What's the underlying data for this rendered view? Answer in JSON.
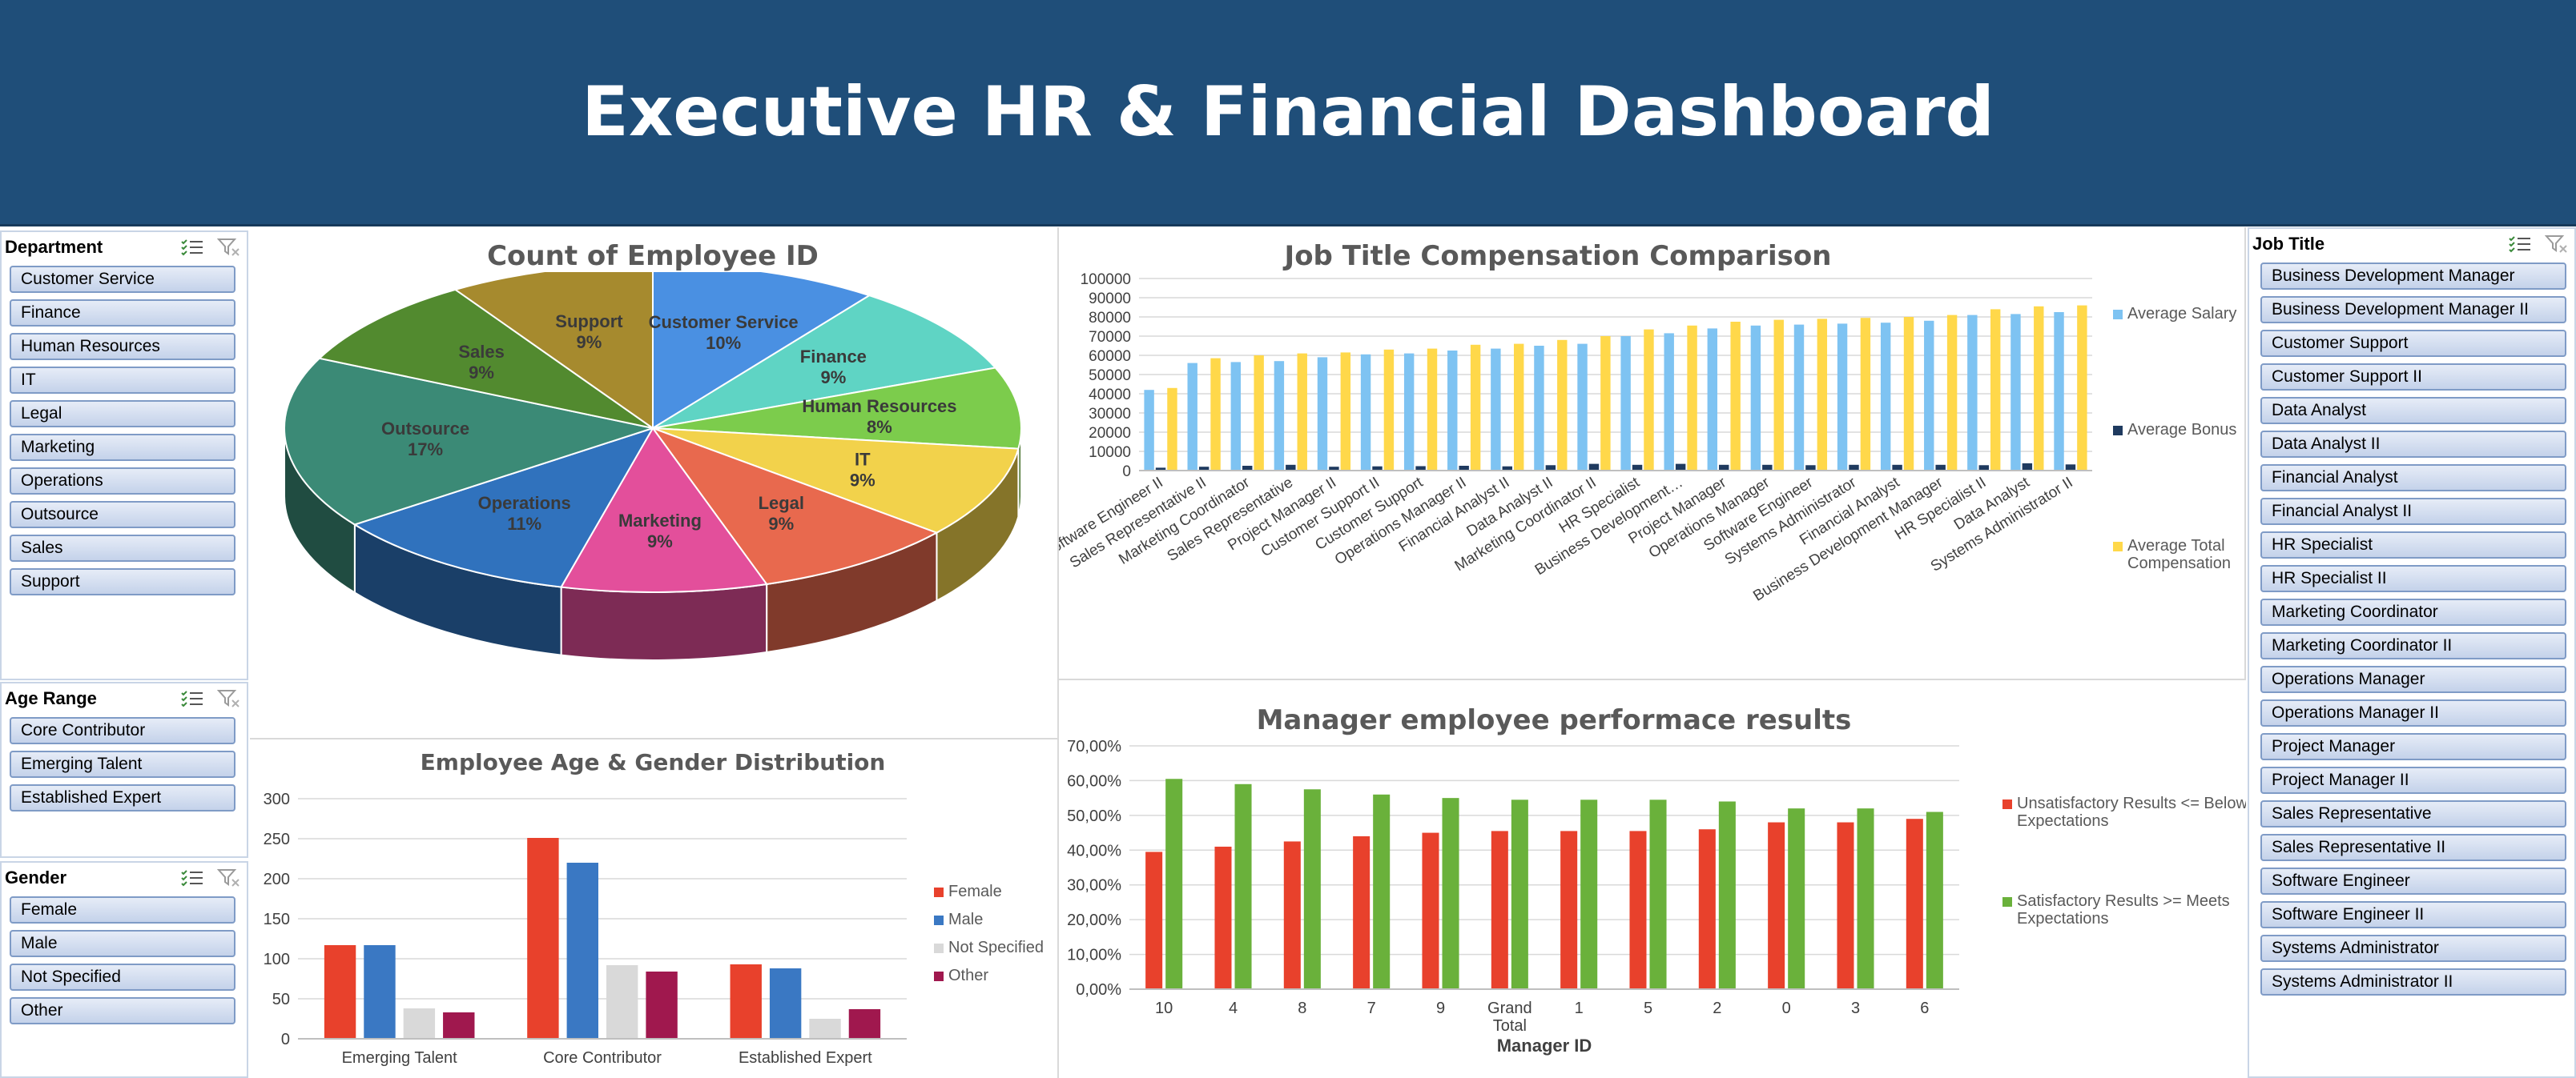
{
  "dashboard": {
    "title": "Executive HR & Financial Dashboard"
  },
  "slicers": {
    "department": {
      "title": "Department",
      "items": [
        "Customer Service",
        "Finance",
        "Human Resources",
        "IT",
        "Legal",
        "Marketing",
        "Operations",
        "Outsource",
        "Sales",
        "Support"
      ]
    },
    "age_range": {
      "title": "Age Range",
      "items": [
        "Core Contributor",
        "Emerging Talent",
        "Established Expert"
      ]
    },
    "gender": {
      "title": "Gender",
      "items": [
        "Female",
        "Male",
        "Not Specified",
        "Other"
      ]
    },
    "job_title": {
      "title": "Job Title",
      "items": [
        "Business Development Manager",
        "Business Development Manager II",
        "Customer Support",
        "Customer Support II",
        "Data Analyst",
        "Data Analyst II",
        "Financial Analyst",
        "Financial Analyst II",
        "HR Specialist",
        "HR Specialist II",
        "Marketing Coordinator",
        "Marketing Coordinator II",
        "Operations Manager",
        "Operations Manager II",
        "Project Manager",
        "Project Manager II",
        "Sales Representative",
        "Sales Representative II",
        "Software Engineer",
        "Software Engineer II",
        "Systems Administrator",
        "Systems Administrator II"
      ]
    }
  },
  "icons": {
    "multi_select": "multi-select-icon",
    "clear_filter": "clear-filter-icon"
  },
  "chart_data": [
    {
      "id": "pie",
      "type": "pie",
      "title": "Count of Employee ID",
      "slices": [
        {
          "name": "Customer Service",
          "pct_label": "10%",
          "value": 10,
          "color": "#4a90e2"
        },
        {
          "name": "Finance",
          "pct_label": "9%",
          "value": 9,
          "color": "#5fd4c4"
        },
        {
          "name": "Human Resources",
          "pct_label": "8%",
          "value": 8,
          "color": "#7ccc4c"
        },
        {
          "name": "IT",
          "pct_label": "9%",
          "value": 9,
          "color": "#f2d24b"
        },
        {
          "name": "Legal",
          "pct_label": "9%",
          "value": 9,
          "color": "#e8694e"
        },
        {
          "name": "Marketing",
          "pct_label": "9%",
          "value": 9,
          "color": "#e34f9b"
        },
        {
          "name": "Operations",
          "pct_label": "11%",
          "value": 11,
          "color": "#3072bd"
        },
        {
          "name": "Outsource",
          "pct_label": "17%",
          "value": 17,
          "color": "#3b8a76"
        },
        {
          "name": "Sales",
          "pct_label": "9%",
          "value": 9,
          "color": "#528a2f"
        },
        {
          "name": "Support",
          "pct_label": "9%",
          "value": 9,
          "color": "#a68a2e"
        }
      ]
    },
    {
      "id": "comp",
      "type": "bar",
      "title": "Job Title Compensation Comparison",
      "categories": [
        "Software Engineer II",
        "Sales Representative II",
        "Marketing Coordinator",
        "Sales Representative",
        "Project Manager II",
        "Customer Support II",
        "Customer Support",
        "Operations Manager II",
        "Financial Analyst II",
        "Data Analyst II",
        "Marketing Coordinator II",
        "HR Specialist",
        "Business Development…",
        "Project Manager",
        "Operations Manager",
        "Software Engineer",
        "Systems Administrator",
        "Financial Analyst",
        "Business Development Manager",
        "HR Specialist II",
        "Data Analyst",
        "Systems Administrator II"
      ],
      "ylim": [
        0,
        100000
      ],
      "yticks": [
        "0",
        "10000",
        "20000",
        "30000",
        "40000",
        "50000",
        "60000",
        "70000",
        "80000",
        "90000",
        "100000"
      ],
      "series": [
        {
          "name": "Average Salary",
          "color": "#7ec3f2",
          "values": [
            42000,
            56000,
            56500,
            57000,
            59000,
            60500,
            61000,
            62500,
            63500,
            65000,
            66000,
            70000,
            71500,
            74000,
            75500,
            76000,
            76500,
            77000,
            78000,
            81000,
            81500,
            82500
          ]
        },
        {
          "name": "Average Bonus",
          "color": "#1f3a5f",
          "values": [
            1500,
            2000,
            2500,
            3000,
            2000,
            2200,
            2300,
            2500,
            2200,
            2800,
            3500,
            3000,
            3500,
            3000,
            3000,
            2800,
            3000,
            3000,
            3000,
            2800,
            3800,
            3200
          ]
        },
        {
          "name": "Average Total Compensation",
          "color": "#ffd84a",
          "values": [
            43000,
            58500,
            60000,
            61000,
            61500,
            63000,
            63500,
            65500,
            66000,
            68000,
            70000,
            73500,
            75500,
            77500,
            78500,
            79000,
            79500,
            80000,
            81000,
            84000,
            85500,
            86000
          ]
        }
      ]
    },
    {
      "id": "age",
      "type": "bar",
      "title": "Employee Age & Gender Distribution",
      "categories": [
        "Emerging Talent",
        "Core Contributor",
        "Established Expert"
      ],
      "ylim": [
        0,
        300
      ],
      "yticks": [
        "0",
        "50",
        "100",
        "150",
        "200",
        "250",
        "300"
      ],
      "series": [
        {
          "name": "Female",
          "color": "#e8412c",
          "values": [
            117,
            251,
            93
          ]
        },
        {
          "name": "Male",
          "color": "#3a78c3",
          "values": [
            117,
            220,
            88
          ]
        },
        {
          "name": "Not Specified",
          "color": "#d9d9d9",
          "values": [
            38,
            92,
            25
          ]
        },
        {
          "name": "Other",
          "color": "#a0184e",
          "values": [
            33,
            84,
            37
          ]
        }
      ]
    },
    {
      "id": "mgr",
      "type": "bar",
      "title": "Manager employee performace results",
      "xlabel": "Manager ID",
      "categories": [
        "10",
        "4",
        "8",
        "7",
        "9",
        "Grand Total",
        "1",
        "5",
        "2",
        "0",
        "3",
        "6"
      ],
      "ylim": [
        0,
        0.7
      ],
      "yticks": [
        "0,00%",
        "10,00%",
        "20,00%",
        "30,00%",
        "40,00%",
        "50,00%",
        "60,00%",
        "70,00%"
      ],
      "series": [
        {
          "name": "Unsatisfactory Results <= Below Expectations",
          "color": "#e8412c",
          "values": [
            0.395,
            0.41,
            0.425,
            0.44,
            0.45,
            0.455,
            0.455,
            0.455,
            0.46,
            0.48,
            0.48,
            0.49
          ]
        },
        {
          "name": "Satisfactory Results >= Meets Expectations",
          "color": "#6ab13b",
          "values": [
            0.605,
            0.59,
            0.575,
            0.56,
            0.55,
            0.545,
            0.545,
            0.545,
            0.54,
            0.52,
            0.52,
            0.51
          ]
        }
      ]
    }
  ]
}
